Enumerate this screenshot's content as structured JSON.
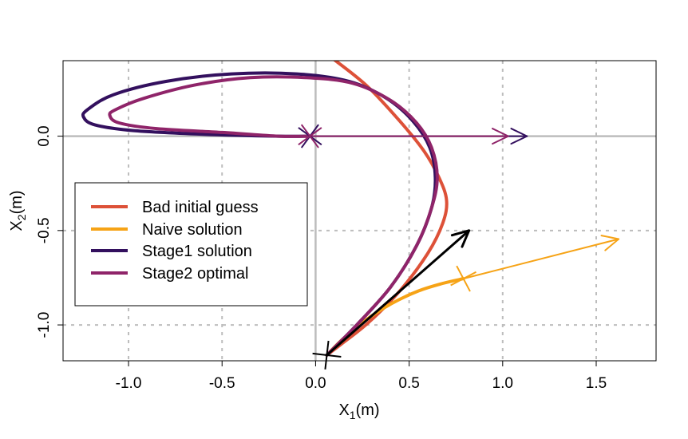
{
  "chart_data": {
    "type": "line",
    "title": "",
    "xlabel": {
      "main": "X",
      "sub": "1",
      "unit": "(m)"
    },
    "ylabel": {
      "main": "X",
      "sub": "2",
      "unit": "(m)"
    },
    "xlim": [
      -1.35,
      1.82
    ],
    "ylim": [
      -1.19,
      0.4
    ],
    "x_ticks": [
      -1.0,
      -0.5,
      0.0,
      0.5,
      1.0,
      1.5
    ],
    "x_tick_labels": [
      "-1.0",
      "-0.5",
      "0.0",
      "0.5",
      "1.0",
      "1.5"
    ],
    "y_ticks": [
      0.0,
      -0.5,
      -1.0
    ],
    "y_tick_labels": [
      "0.0",
      "-0.5",
      "-1.0"
    ],
    "grid": true,
    "legend_position": "left",
    "series": [
      {
        "name": "Bad initial guess",
        "color": "#dd5138",
        "points": [
          [
            0.08,
            0.42
          ],
          [
            0.27,
            0.27
          ],
          [
            0.45,
            0.08
          ],
          [
            0.58,
            -0.08
          ],
          [
            0.66,
            -0.22
          ],
          [
            0.7,
            -0.34
          ],
          [
            0.68,
            -0.46
          ],
          [
            0.6,
            -0.62
          ],
          [
            0.45,
            -0.82
          ],
          [
            0.28,
            -0.99
          ],
          [
            0.14,
            -1.1
          ],
          [
            0.06,
            -1.16
          ]
        ]
      },
      {
        "name": "Naive solution",
        "color": "#f6a316",
        "points": [
          [
            0.06,
            -1.16
          ],
          [
            0.14,
            -1.08
          ],
          [
            0.26,
            -0.98
          ],
          [
            0.4,
            -0.89
          ],
          [
            0.55,
            -0.82
          ],
          [
            0.68,
            -0.78
          ],
          [
            0.79,
            -0.755
          ]
        ]
      },
      {
        "name": "Stage1 solution",
        "color": "#33105e",
        "points": [
          [
            0.06,
            -1.16
          ],
          [
            0.22,
            -1.0
          ],
          [
            0.4,
            -0.8
          ],
          [
            0.54,
            -0.58
          ],
          [
            0.62,
            -0.38
          ],
          [
            0.64,
            -0.22
          ],
          [
            0.61,
            -0.06
          ],
          [
            0.52,
            0.08
          ],
          [
            0.38,
            0.2
          ],
          [
            0.18,
            0.29
          ],
          [
            -0.1,
            0.33
          ],
          [
            -0.45,
            0.33
          ],
          [
            -0.8,
            0.29
          ],
          [
            -1.08,
            0.22
          ],
          [
            -1.22,
            0.14
          ],
          [
            -1.24,
            0.1
          ],
          [
            -1.18,
            0.06
          ],
          [
            -0.98,
            0.03
          ],
          [
            -0.6,
            0.01
          ],
          [
            -0.2,
            0.0
          ],
          [
            -0.03,
            0.0
          ]
        ]
      },
      {
        "name": "Stage2 optimal",
        "color": "#8f2469",
        "points": [
          [
            0.06,
            -1.16
          ],
          [
            0.22,
            -1.0
          ],
          [
            0.4,
            -0.8
          ],
          [
            0.54,
            -0.58
          ],
          [
            0.62,
            -0.38
          ],
          [
            0.65,
            -0.22
          ],
          [
            0.62,
            -0.06
          ],
          [
            0.54,
            0.07
          ],
          [
            0.4,
            0.19
          ],
          [
            0.2,
            0.28
          ],
          [
            -0.05,
            0.31
          ],
          [
            -0.35,
            0.31
          ],
          [
            -0.65,
            0.27
          ],
          [
            -0.92,
            0.2
          ],
          [
            -1.07,
            0.14
          ],
          [
            -1.1,
            0.11
          ],
          [
            -1.05,
            0.07
          ],
          [
            -0.85,
            0.04
          ],
          [
            -0.5,
            0.02
          ],
          [
            -0.2,
            0.0
          ],
          [
            -0.03,
            0.0
          ]
        ]
      }
    ],
    "arrows": [
      {
        "from": [
          -0.03,
          0.0
        ],
        "to": [
          1.13,
          0.0
        ],
        "color": "#33105e"
      },
      {
        "from": [
          -0.03,
          0.0
        ],
        "to": [
          1.03,
          0.0
        ],
        "color": "#8f2469"
      },
      {
        "from": [
          0.79,
          -0.755
        ],
        "to": [
          1.62,
          -0.545
        ],
        "color": "#f6a316"
      },
      {
        "from": [
          0.06,
          -1.16
        ],
        "to": [
          0.82,
          -0.5
        ],
        "color": "#000000"
      }
    ],
    "markers": [
      {
        "x": -0.03,
        "y": 0.0,
        "color": "#33105e",
        "symbol": "cross"
      },
      {
        "x": -0.03,
        "y": 0.0,
        "color": "#8f2469",
        "symbol": "cross"
      },
      {
        "x": 0.79,
        "y": -0.755,
        "color": "#f6a316",
        "symbol": "cross"
      },
      {
        "x": 0.06,
        "y": -1.16,
        "color": "#000000",
        "symbol": "cross"
      }
    ]
  }
}
